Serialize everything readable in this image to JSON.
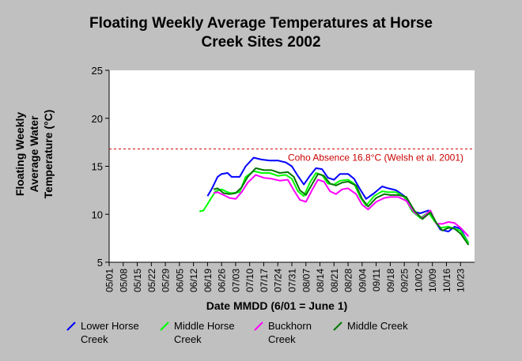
{
  "title_lines": [
    "Floating Weekly Average Temperatures at Horse",
    "Creek Sites 2002"
  ],
  "ylabel_lines": [
    "Floating Weekly",
    "Average Water",
    "Temperature (°C)"
  ],
  "xlabel": "Date MMDD (6/01 = June 1)",
  "colors": {
    "background": "#c0c0c0",
    "plot_bg": "#ffffff",
    "reference_line": "#cc0000",
    "lower_horse": "#0000ff",
    "middle_horse": "#00ff00",
    "buckhorn": "#ff00ff",
    "middle_creek": "#007700"
  },
  "chart_data": {
    "type": "line",
    "title": "Floating Weekly Average Temperatures at Horse Creek Sites 2002",
    "xlabel": "Date MMDD (6/01 = June 1)",
    "ylabel": "Floating Weekly Average Water Temperature (°C)",
    "x_ticks": [
      "05/01",
      "05/08",
      "05/15",
      "05/22",
      "05/29",
      "06/05",
      "06/12",
      "06/19",
      "06/26",
      "07/03",
      "07/10",
      "07/17",
      "07/24",
      "07/31",
      "08/07",
      "08/14",
      "08/21",
      "08/28",
      "09/04",
      "09/11",
      "09/18",
      "09/25",
      "10/02",
      "10/09",
      "10/16",
      "10/23"
    ],
    "xlim": [
      "05/01",
      "10/30"
    ],
    "ylim": [
      5,
      25
    ],
    "y_ticks": [
      5,
      10,
      15,
      20,
      25
    ],
    "grid": false,
    "legend_position": "bottom",
    "reference_line": {
      "value": 16.8,
      "label": "Coho Absence 16.8°C (Welsh et al. 2001)"
    },
    "series": [
      {
        "name": "Lower Horse Creek",
        "color": "#0000ff",
        "x": [
          "06/19",
          "06/21",
          "06/24",
          "06/26",
          "06/29",
          "07/01",
          "07/05",
          "07/08",
          "07/12",
          "07/16",
          "07/20",
          "07/24",
          "07/28",
          "07/31",
          "08/03",
          "08/06",
          "08/09",
          "08/12",
          "08/15",
          "08/18",
          "08/21",
          "08/24",
          "08/28",
          "08/31",
          "09/03",
          "09/06",
          "09/10",
          "09/14",
          "09/17",
          "09/21",
          "09/25",
          "09/29",
          "10/03",
          "10/07",
          "10/10",
          "10/13",
          "10/17",
          "10/20",
          "10/23",
          "10/27"
        ],
        "y": [
          11.9,
          12.6,
          13.9,
          14.2,
          14.3,
          13.9,
          13.9,
          15.0,
          15.9,
          15.7,
          15.6,
          15.6,
          15.4,
          15.0,
          14.0,
          13.1,
          14.0,
          14.8,
          14.7,
          13.8,
          13.6,
          14.2,
          14.2,
          13.7,
          12.6,
          11.6,
          12.2,
          12.9,
          12.7,
          12.5,
          11.9,
          10.3,
          10.1,
          10.4,
          9.4,
          8.4,
          8.2,
          8.7,
          8.5,
          7.0
        ]
      },
      {
        "name": "Middle Horse Creek",
        "color": "#00ff00",
        "x": [
          "06/15",
          "06/17",
          "06/20",
          "06/23",
          "06/26",
          "06/29",
          "07/01",
          "07/05",
          "07/08",
          "07/12",
          "07/16",
          "07/20",
          "07/24",
          "07/28",
          "07/31",
          "08/03",
          "08/06",
          "08/09",
          "08/12",
          "08/15",
          "08/18",
          "08/21",
          "08/24",
          "08/28",
          "08/31",
          "09/03",
          "09/06",
          "09/10",
          "09/14",
          "09/17",
          "09/21",
          "09/25",
          "09/29",
          "10/03",
          "10/07",
          "10/10",
          "10/13",
          "10/17",
          "10/20",
          "10/23",
          "10/27"
        ],
        "y": [
          10.3,
          10.4,
          11.4,
          12.4,
          12.6,
          12.3,
          12.2,
          12.3,
          13.9,
          14.5,
          14.3,
          14.3,
          14.0,
          14.1,
          13.7,
          12.4,
          11.9,
          13.3,
          14.3,
          14.1,
          13.2,
          13.1,
          13.5,
          13.6,
          13.2,
          11.8,
          10.9,
          11.9,
          12.4,
          12.3,
          12.3,
          11.8,
          10.3,
          9.6,
          10.2,
          9.3,
          8.6,
          8.7,
          8.5,
          8.3,
          7.0
        ]
      },
      {
        "name": "Buckhorn Creek",
        "color": "#ff00ff",
        "x": [
          "06/22",
          "06/24",
          "06/27",
          "06/30",
          "07/03",
          "07/06",
          "07/09",
          "07/13",
          "07/17",
          "07/21",
          "07/25",
          "07/29",
          "08/01",
          "08/04",
          "08/07",
          "08/10",
          "08/13",
          "08/16",
          "08/19",
          "08/22",
          "08/25",
          "08/28",
          "09/01",
          "09/04",
          "09/07",
          "09/11",
          "09/15",
          "09/18",
          "09/22",
          "09/26",
          "09/30",
          "10/04",
          "10/08",
          "10/11",
          "10/14",
          "10/17",
          "10/20",
          "10/23",
          "10/27"
        ],
        "y": [
          12.2,
          12.3,
          12.0,
          11.7,
          11.6,
          12.3,
          13.3,
          14.1,
          13.8,
          13.7,
          13.5,
          13.6,
          12.5,
          11.5,
          11.3,
          12.5,
          13.6,
          13.4,
          12.4,
          12.1,
          12.6,
          12.7,
          12.1,
          11.0,
          10.5,
          11.3,
          11.7,
          11.8,
          11.8,
          11.4,
          10.2,
          9.6,
          10.4,
          9.0,
          9.0,
          9.2,
          9.1,
          8.6,
          7.7
        ]
      },
      {
        "name": "Middle Creek",
        "color": "#007700",
        "x": [
          "06/22",
          "06/24",
          "06/27",
          "06/30",
          "07/03",
          "07/06",
          "07/09",
          "07/13",
          "07/17",
          "07/21",
          "07/25",
          "07/29",
          "08/01",
          "08/04",
          "08/07",
          "08/10",
          "08/13",
          "08/16",
          "08/19",
          "08/22",
          "08/25",
          "08/28",
          "09/01",
          "09/04",
          "09/07",
          "09/11",
          "09/15",
          "09/18",
          "09/22",
          "09/26",
          "09/30",
          "10/04",
          "10/08",
          "10/11",
          "10/14",
          "10/17",
          "10/20",
          "10/23",
          "10/27"
        ],
        "y": [
          12.6,
          12.7,
          12.2,
          12.1,
          12.2,
          12.8,
          13.9,
          14.8,
          14.6,
          14.6,
          14.3,
          14.4,
          13.9,
          12.5,
          12.0,
          13.1,
          14.2,
          14.0,
          13.2,
          13.0,
          13.3,
          13.4,
          13.0,
          11.6,
          10.8,
          11.7,
          12.1,
          12.0,
          12.0,
          11.8,
          10.4,
          9.5,
          10.2,
          9.1,
          8.3,
          8.6,
          8.5,
          8.0,
          6.8
        ]
      }
    ]
  },
  "legend": [
    {
      "lines": [
        "Lower Horse",
        "Creek"
      ],
      "color": "#0000ff"
    },
    {
      "lines": [
        "Middle Horse",
        "Creek"
      ],
      "color": "#00ff00"
    },
    {
      "lines": [
        "Buckhorn",
        "Creek"
      ],
      "color": "#ff00ff"
    },
    {
      "lines": [
        "Middle Creek"
      ],
      "color": "#007700"
    }
  ]
}
